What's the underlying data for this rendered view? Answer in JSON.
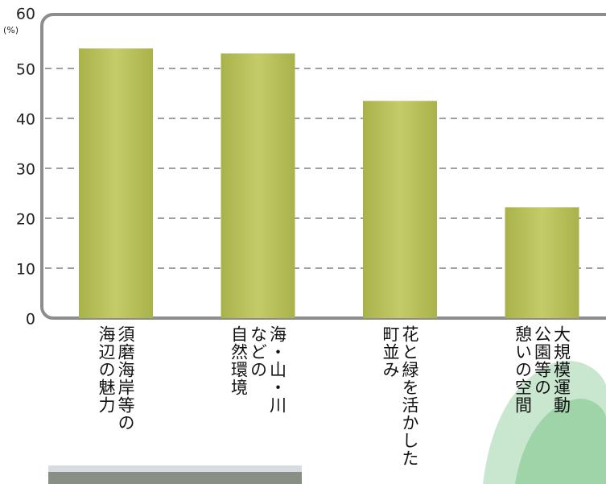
{
  "chart_data": {
    "type": "bar",
    "categories": [
      "須磨海岸等の\n海辺の魅力",
      "海・山・川\nなどの\n自然環境",
      "花と緑を活かした\n町並み",
      "大規模運動\n公園等の\n憩いの空間"
    ],
    "values": [
      54,
      53,
      43.5,
      22.2
    ],
    "color": "#b9c15c",
    "y_unit": "(%)",
    "ylim": [
      0,
      60
    ],
    "yticks": [
      0,
      10,
      20,
      30,
      40,
      50,
      60
    ],
    "grid": true
  }
}
